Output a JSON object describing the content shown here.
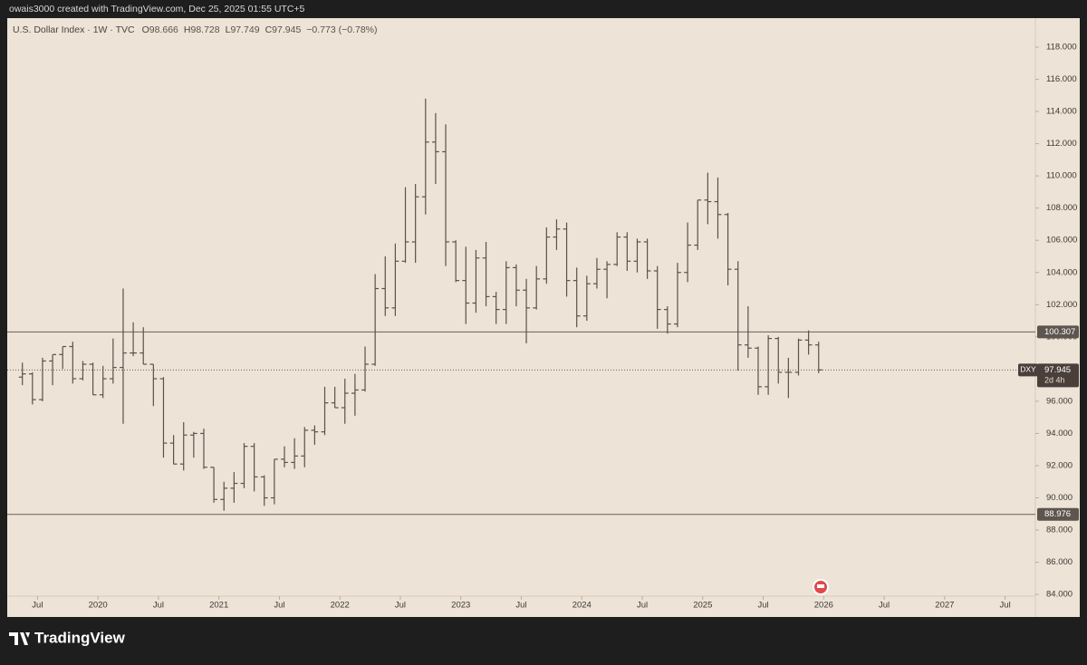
{
  "header": {
    "attribution": "owais3000 created with TradingView.com, Dec 25, 2025 01:55 UTC+5"
  },
  "chart_data": {
    "type": "ohlc",
    "symbol_line": {
      "title": "U.S. Dollar Index · 1W · TVC",
      "items": [
        {
          "label": "O",
          "value": 98.666
        },
        {
          "label": "H",
          "value": 98.728
        },
        {
          "label": "L",
          "value": 97.749
        },
        {
          "label": "C",
          "value": 97.945
        }
      ],
      "change": "−0.773 (−0.78%)"
    },
    "x": [
      "2019-05",
      "2019-06",
      "2019-07",
      "2019-08",
      "2019-09",
      "2019-10",
      "2019-11",
      "2019-12",
      "2020-01",
      "2020-02",
      "2020-03",
      "2020-04",
      "2020-05",
      "2020-06",
      "2020-07",
      "2020-08",
      "2020-09",
      "2020-10",
      "2020-11",
      "2020-12",
      "2021-01",
      "2021-02",
      "2021-03",
      "2021-04",
      "2021-05",
      "2021-06",
      "2021-07",
      "2021-08",
      "2021-09",
      "2021-10",
      "2021-11",
      "2021-12",
      "2022-01",
      "2022-02",
      "2022-03",
      "2022-04",
      "2022-05",
      "2022-06",
      "2022-07",
      "2022-08",
      "2022-09",
      "2022-10",
      "2022-11",
      "2022-12",
      "2023-01",
      "2023-02",
      "2023-03",
      "2023-04",
      "2023-05",
      "2023-06",
      "2023-07",
      "2023-08",
      "2023-09",
      "2023-10",
      "2023-11",
      "2023-12",
      "2024-01",
      "2024-02",
      "2024-03",
      "2024-04",
      "2024-05",
      "2024-06",
      "2024-07",
      "2024-08",
      "2024-09",
      "2024-10",
      "2024-11",
      "2024-12",
      "2025-01",
      "2025-02",
      "2025-03",
      "2025-04",
      "2025-05",
      "2025-06",
      "2025-07",
      "2025-08",
      "2025-09",
      "2025-10",
      "2025-11",
      "2025-12"
    ],
    "open": [
      97.5,
      97.7,
      96.1,
      98.5,
      98.9,
      99.4,
      97.4,
      98.3,
      96.4,
      97.4,
      98.1,
      99.0,
      99.0,
      98.3,
      97.4,
      93.4,
      92.1,
      93.9,
      94.0,
      91.9,
      89.9,
      90.6,
      90.9,
      93.2,
      91.3,
      90.0,
      92.4,
      92.2,
      92.6,
      94.2,
      94.1,
      95.9,
      95.6,
      96.5,
      96.7,
      98.3,
      103.0,
      101.8,
      104.7,
      105.9,
      108.7,
      112.1,
      111.5,
      105.9,
      103.5,
      102.1,
      104.9,
      102.5,
      101.7,
      104.3,
      102.9,
      101.8,
      103.6,
      106.2,
      106.7,
      103.5,
      101.3,
      103.3,
      104.2,
      104.5,
      106.2,
      104.7,
      105.9,
      104.1,
      101.7,
      100.8,
      104.0,
      105.7,
      108.5,
      108.4,
      107.6,
      104.2,
      99.5,
      99.3,
      96.9,
      99.9,
      97.8,
      97.8,
      99.8,
      99.5
    ],
    "high": [
      98.4,
      97.8,
      98.7,
      98.9,
      99.4,
      99.7,
      98.5,
      98.4,
      98.2,
      99.9,
      103.0,
      100.9,
      100.6,
      98.3,
      97.5,
      93.9,
      94.7,
      94.1,
      94.3,
      91.9,
      91.0,
      91.6,
      93.4,
      93.4,
      91.4,
      92.4,
      93.2,
      93.7,
      94.4,
      94.5,
      96.9,
      96.9,
      97.4,
      97.7,
      99.4,
      103.9,
      105.0,
      105.8,
      109.3,
      109.5,
      114.8,
      113.9,
      113.2,
      106.0,
      105.6,
      105.4,
      105.9,
      102.8,
      104.7,
      104.5,
      103.6,
      104.4,
      106.8,
      107.3,
      107.1,
      104.3,
      103.8,
      104.9,
      104.7,
      106.5,
      106.5,
      106.1,
      106.1,
      104.4,
      101.9,
      104.6,
      107.1,
      108.5,
      110.2,
      109.9,
      107.7,
      104.7,
      101.9,
      99.4,
      100.1,
      100.0,
      98.7,
      99.9,
      100.4,
      99.7
    ],
    "low": [
      97.0,
      95.8,
      96.0,
      97.0,
      98.0,
      97.1,
      97.3,
      96.4,
      96.2,
      97.1,
      94.6,
      98.8,
      98.3,
      95.7,
      92.5,
      92.1,
      91.7,
      92.5,
      91.8,
      89.7,
      89.2,
      89.7,
      90.6,
      90.4,
      89.5,
      89.6,
      91.9,
      91.8,
      91.9,
      93.3,
      93.9,
      95.6,
      94.6,
      95.1,
      96.6,
      98.2,
      101.3,
      101.3,
      104.6,
      104.6,
      107.6,
      109.5,
      104.4,
      103.4,
      100.8,
      101.5,
      101.9,
      100.8,
      100.8,
      101.9,
      99.6,
      101.7,
      103.3,
      105.4,
      102.5,
      100.6,
      101.0,
      103.0,
      102.4,
      104.4,
      104.1,
      104.0,
      103.6,
      100.5,
      100.2,
      100.6,
      103.4,
      105.4,
      107.0,
      106.1,
      103.2,
      97.9,
      98.7,
      96.4,
      96.4,
      97.1,
      96.2,
      97.6,
      98.9,
      97.749
    ],
    "close": [
      97.7,
      96.1,
      98.5,
      98.9,
      99.4,
      97.4,
      98.3,
      96.4,
      97.4,
      98.1,
      99.0,
      99.0,
      98.3,
      97.4,
      93.4,
      92.1,
      93.9,
      94.0,
      91.9,
      89.9,
      90.6,
      90.9,
      93.2,
      91.3,
      90.0,
      92.4,
      92.2,
      92.6,
      94.2,
      94.1,
      95.9,
      95.6,
      96.5,
      96.7,
      98.3,
      103.0,
      101.8,
      104.7,
      105.9,
      108.7,
      112.1,
      111.5,
      105.9,
      103.5,
      102.1,
      104.9,
      102.5,
      101.7,
      104.3,
      102.9,
      101.8,
      103.6,
      106.2,
      106.7,
      103.5,
      101.3,
      103.3,
      104.2,
      104.5,
      106.2,
      104.7,
      105.9,
      104.1,
      101.7,
      100.8,
      104.0,
      105.7,
      108.5,
      108.4,
      107.6,
      104.2,
      99.5,
      99.3,
      96.9,
      99.9,
      97.8,
      97.8,
      99.8,
      99.5,
      97.945
    ],
    "color": "#5a524c",
    "xlim": [
      "2019-04",
      "2027-10"
    ],
    "xticks": [
      {
        "value": "2019-07",
        "label": "Jul"
      },
      {
        "value": "2020-01",
        "label": "2020"
      },
      {
        "value": "2020-07",
        "label": "Jul"
      },
      {
        "value": "2021-01",
        "label": "2021"
      },
      {
        "value": "2021-07",
        "label": "Jul"
      },
      {
        "value": "2022-01",
        "label": "2022"
      },
      {
        "value": "2022-07",
        "label": "Jul"
      },
      {
        "value": "2023-01",
        "label": "2023"
      },
      {
        "value": "2023-07",
        "label": "Jul"
      },
      {
        "value": "2024-01",
        "label": "2024"
      },
      {
        "value": "2024-07",
        "label": "Jul"
      },
      {
        "value": "2025-01",
        "label": "2025"
      },
      {
        "value": "2025-07",
        "label": "Jul"
      },
      {
        "value": "2026-01",
        "label": "2026"
      },
      {
        "value": "2026-07",
        "label": "Jul"
      },
      {
        "value": "2027-01",
        "label": "2027"
      },
      {
        "value": "2027-07",
        "label": "Jul"
      }
    ],
    "ylim": [
      82.6,
      119.8
    ],
    "yticks": [
      {
        "value": 84,
        "label": "84.000"
      },
      {
        "value": 86,
        "label": "86.000"
      },
      {
        "value": 88,
        "label": "88.000"
      },
      {
        "value": 90,
        "label": "90.000"
      },
      {
        "value": 92,
        "label": "92.000"
      },
      {
        "value": 94,
        "label": "94.000"
      },
      {
        "value": 96,
        "label": "96.000"
      },
      {
        "value": 98,
        "label": "98.000"
      },
      {
        "value": 100,
        "label": "100.000"
      },
      {
        "value": 102,
        "label": "102.000"
      },
      {
        "value": 104,
        "label": "104.000"
      },
      {
        "value": 106,
        "label": "106.000"
      },
      {
        "value": 108,
        "label": "108.000"
      },
      {
        "value": 110,
        "label": "110.000"
      },
      {
        "value": 112,
        "label": "112.000"
      },
      {
        "value": 114,
        "label": "114.000"
      },
      {
        "value": 116,
        "label": "116.000"
      },
      {
        "value": 118,
        "label": "118.000"
      }
    ],
    "hlines": [
      100.307,
      88.976
    ],
    "last_price": {
      "symbol": "DXY",
      "value": 97.945,
      "countdown": "2d 4h"
    }
  },
  "footer": {
    "brand": "TradingView"
  }
}
